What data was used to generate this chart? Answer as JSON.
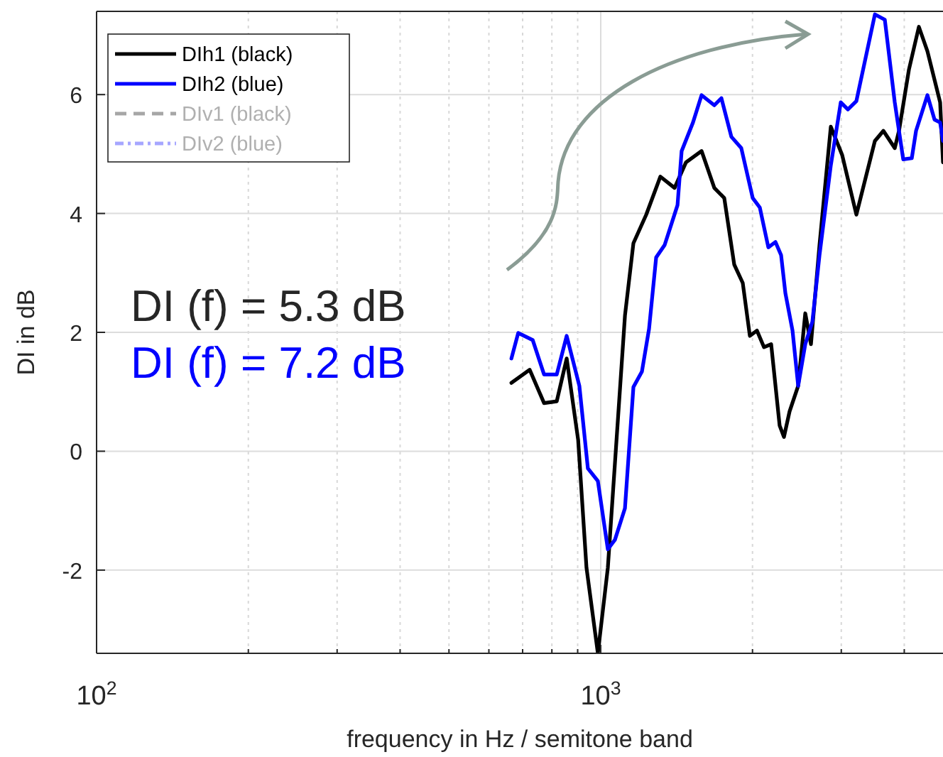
{
  "chart_data": {
    "type": "line",
    "xlabel": "frequency in Hz / semitone band",
    "ylabel": "DI in dB",
    "log": "x",
    "grid": true,
    "legend": "top left",
    "line_style": "solid",
    "xlim": [
      100,
      4774
    ],
    "xticks": [
      {
        "value": 100,
        "label": "10$^{2}$"
      },
      {
        "value": 1000,
        "label": "10$^{3}$"
      }
    ],
    "ylim": [
      -3.4,
      7.4
    ],
    "yticks": [
      -2,
      0,
      2,
      4,
      6
    ],
    "annotations": [
      "DI (f) = 5.3 dB",
      "DI (f) = 7.2 dB"
    ],
    "series": [
      {
        "name": "DIh1 (black)",
        "color": "#000000",
        "x": [
          665,
          723,
          772,
          818,
          856,
          902,
          937,
          987,
          1033,
          1117,
          1161,
          1231,
          1313,
          1401,
          1476,
          1585,
          1680,
          1758,
          1840,
          1913,
          1976,
          2041,
          2108,
          2178,
          2264,
          2309,
          2369,
          2464,
          2545,
          2612,
          2716,
          2860,
          3013,
          3214,
          3498,
          3636,
          3830,
          3905,
          4086,
          4276,
          4446,
          4712,
          4774
        ],
        "values": [
          1.15,
          1.37,
          0.81,
          0.84,
          1.56,
          0.19,
          -1.96,
          -3.4,
          -1.96,
          2.28,
          3.5,
          3.98,
          4.62,
          4.43,
          4.86,
          5.05,
          4.43,
          4.26,
          3.14,
          2.83,
          1.94,
          2.03,
          1.75,
          1.8,
          0.43,
          0.24,
          0.67,
          1.1,
          2.32,
          1.8,
          3.47,
          5.46,
          4.98,
          3.98,
          5.22,
          5.39,
          5.1,
          5.39,
          6.42,
          7.14,
          6.73,
          5.87,
          4.86
        ]
      },
      {
        "name": "DIh2 (blue)",
        "color": "#0000ff",
        "x": [
          665,
          686,
          733,
          772,
          818,
          856,
          907,
          943,
          987,
          1033,
          1067,
          1117,
          1161,
          1207,
          1247,
          1288,
          1339,
          1420,
          1447,
          1524,
          1585,
          1680,
          1735,
          1816,
          1900,
          2002,
          2068,
          2150,
          2221,
          2279,
          2324,
          2401,
          2464,
          2545,
          2629,
          2716,
          2860,
          2993,
          3092,
          3214,
          3498,
          3660,
          3830,
          3981,
          4140,
          4221,
          4446,
          4592,
          4712,
          4774
        ],
        "values": [
          1.56,
          1.99,
          1.87,
          1.29,
          1.29,
          1.94,
          1.1,
          -0.29,
          -0.5,
          -1.65,
          -1.49,
          -0.96,
          1.08,
          1.34,
          2.06,
          3.26,
          3.47,
          4.14,
          5.05,
          5.53,
          5.99,
          5.82,
          5.94,
          5.29,
          5.1,
          4.26,
          4.1,
          3.43,
          3.52,
          3.3,
          2.66,
          2.03,
          1.1,
          1.8,
          2.18,
          3.3,
          4.81,
          5.87,
          5.75,
          5.89,
          7.35,
          7.26,
          5.87,
          4.91,
          4.93,
          5.39,
          5.99,
          5.58,
          5.53,
          5.22
        ]
      },
      {
        "name": "DIv1 (black)",
        "color": "#a6a6a6",
        "line_style": "dashed"
      },
      {
        "name": "DIv2 (blue)",
        "color": "#a6a6ff",
        "line_style": "dashdot"
      }
    ]
  }
}
